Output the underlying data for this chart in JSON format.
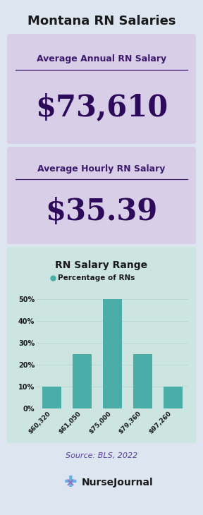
{
  "title": "Montana RN Salaries",
  "title_color": "#1a1a1a",
  "bg_color": "#dde5f0",
  "box1_bg": "#d8cee8",
  "box2_bg": "#d8cee8",
  "chart_bg": "#cce5e0",
  "box1_label": "Average Annual RN Salary",
  "box1_value": "$73,610",
  "box2_label": "Average Hourly RN Salary",
  "box2_value": "$35.39",
  "label_color": "#3d1a6b",
  "value_color": "#2d0a5a",
  "chart_title": "RN Salary Range",
  "chart_legend": "Percentage of RNs",
  "chart_title_color": "#1a1a1a",
  "bar_color": "#4aada8",
  "categories": [
    "$60,320",
    "$61,050",
    "$75,000",
    "$79,360",
    "$97,260"
  ],
  "values": [
    10,
    25,
    50,
    25,
    10
  ],
  "ytick_labels": [
    "0%",
    "10%",
    "20%",
    "30%",
    "40%",
    "50%"
  ],
  "ytick_values": [
    0,
    10,
    20,
    30,
    40,
    50
  ],
  "source_text": "Source: BLS, 2022",
  "source_color": "#5b3fa0",
  "logo_text": "NurseJournal",
  "logo_color": "#1a1a1a"
}
